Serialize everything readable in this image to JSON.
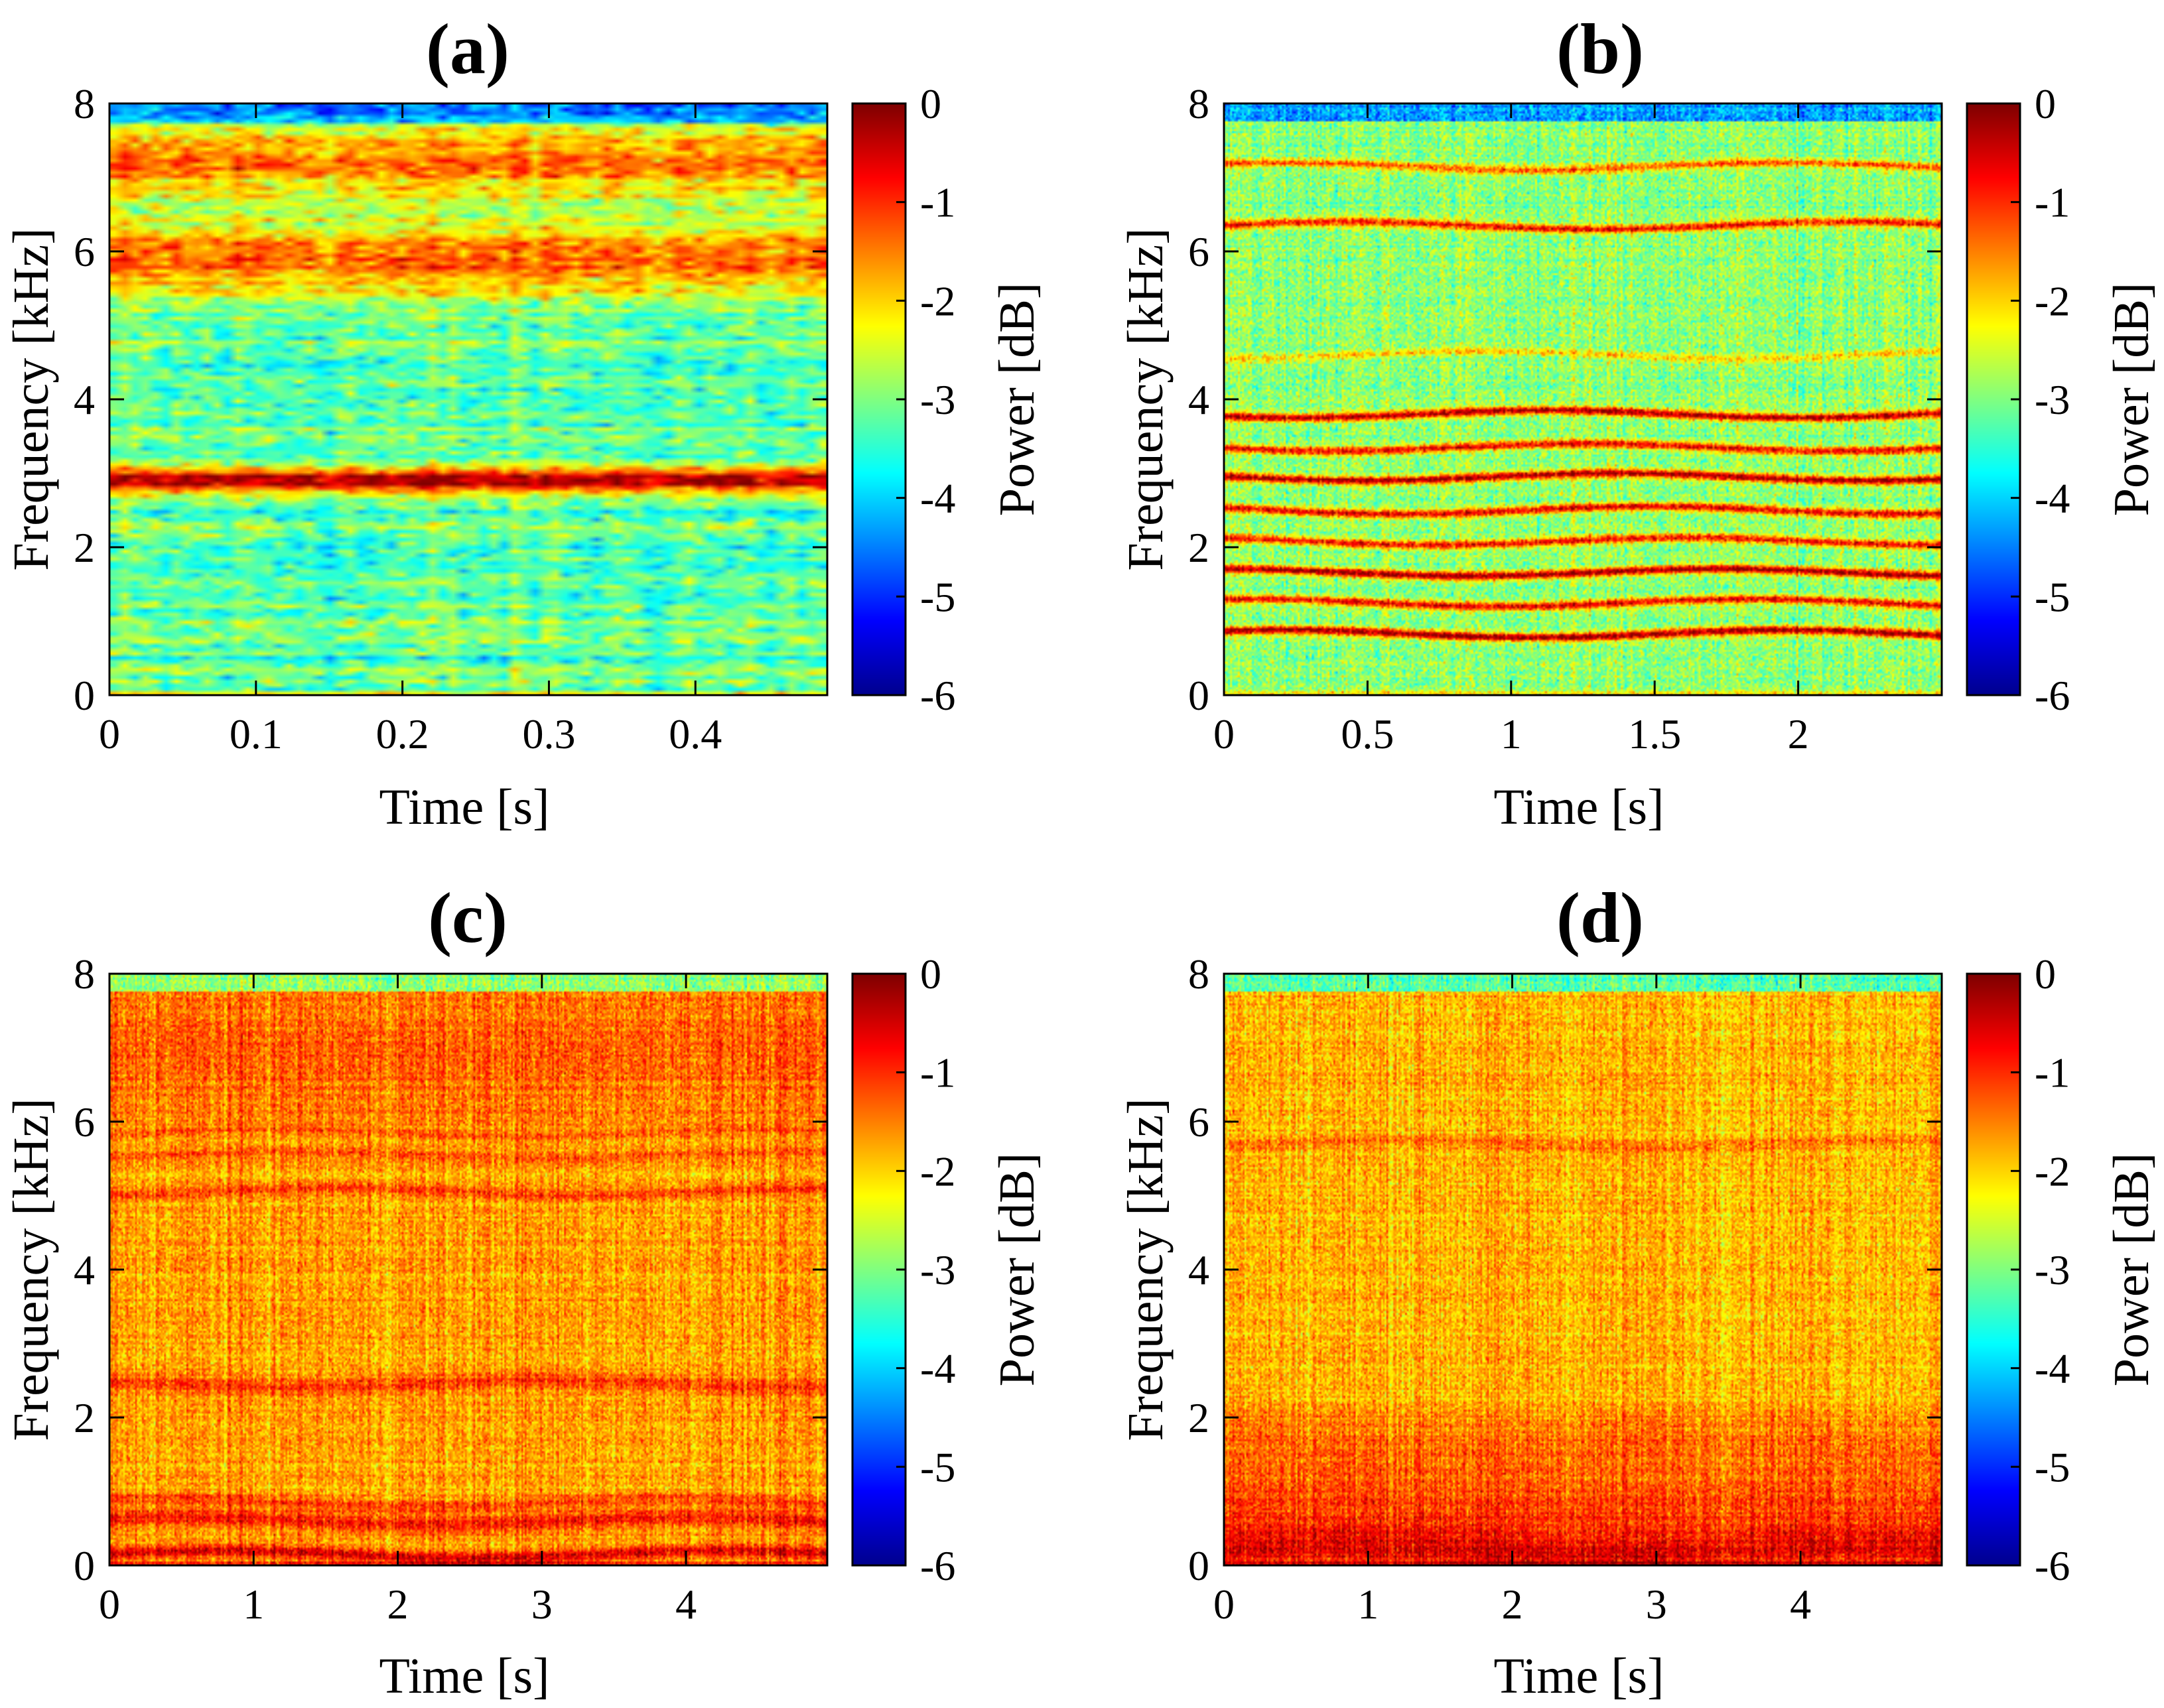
{
  "figure": {
    "colormap": "jet",
    "colormap_stops": [
      "#00008f",
      "#0000ff",
      "#0080ff",
      "#00ffff",
      "#80ff80",
      "#ffff00",
      "#ff8000",
      "#ff0000",
      "#800000"
    ]
  },
  "chart_data": [
    {
      "type": "heatmap",
      "title": "(a)",
      "xlabel": "Time [s]",
      "ylabel": "Frequency [kHz]",
      "colorbar_label": "Power [dB]",
      "xlim": [
        0,
        0.49
      ],
      "ylim": [
        0,
        8
      ],
      "xticks": [
        0,
        0.1,
        0.2,
        0.3,
        0.4
      ],
      "xtick_labels": [
        "0",
        "0.1",
        "0.2",
        "0.3",
        "0.4"
      ],
      "yticks": [
        0,
        2,
        4,
        6,
        8
      ],
      "ytick_labels": [
        "0",
        "2",
        "4",
        "6",
        "8"
      ],
      "clim": [
        -6,
        0
      ],
      "cticks": [
        0,
        -1,
        -2,
        -3,
        -4,
        -5,
        -6
      ],
      "ctick_labels": [
        "0",
        "-1",
        "-2",
        "-3",
        "-4",
        "-5",
        "-6"
      ],
      "style": "blocky",
      "base_db": -3.2,
      "noise_db": 0.5,
      "bands": [
        {
          "freq_khz": 2.9,
          "db": -0.2,
          "width_khz": 0.12
        },
        {
          "freq_khz": 5.9,
          "db": -1.3,
          "width_khz": 0.35
        },
        {
          "freq_khz": 7.2,
          "db": -1.5,
          "width_khz": 0.35
        }
      ]
    },
    {
      "type": "heatmap",
      "title": "(b)",
      "xlabel": "Time [s]",
      "ylabel": "Frequency [kHz]",
      "colorbar_label": "Power [dB]",
      "xlim": [
        0,
        2.5
      ],
      "ylim": [
        0,
        8
      ],
      "xticks": [
        0,
        0.5,
        1,
        1.5,
        2
      ],
      "xtick_labels": [
        "0",
        "0.5",
        "1",
        "1.5",
        "2"
      ],
      "yticks": [
        0,
        2,
        4,
        6,
        8
      ],
      "ytick_labels": [
        "0",
        "2",
        "4",
        "6",
        "8"
      ],
      "clim": [
        -6,
        0
      ],
      "cticks": [
        0,
        -1,
        -2,
        -3,
        -4,
        -5,
        -6
      ],
      "ctick_labels": [
        "0",
        "-1",
        "-2",
        "-3",
        "-4",
        "-5",
        "-6"
      ],
      "style": "harmonic",
      "base_db": -2.9,
      "noise_db": 0.45,
      "bands": [
        {
          "freq_khz": 0.83,
          "db": -0.1,
          "width_khz": 0.04
        },
        {
          "freq_khz": 1.25,
          "db": -0.6,
          "width_khz": 0.04
        },
        {
          "freq_khz": 1.66,
          "db": -0.2,
          "width_khz": 0.04
        },
        {
          "freq_khz": 2.08,
          "db": -0.7,
          "width_khz": 0.04
        },
        {
          "freq_khz": 2.5,
          "db": -0.5,
          "width_khz": 0.04
        },
        {
          "freq_khz": 2.95,
          "db": -0.2,
          "width_khz": 0.04
        },
        {
          "freq_khz": 3.35,
          "db": -0.6,
          "width_khz": 0.04
        },
        {
          "freq_khz": 3.8,
          "db": -0.2,
          "width_khz": 0.04
        },
        {
          "freq_khz": 4.6,
          "db": -1.9,
          "width_khz": 0.04
        },
        {
          "freq_khz": 6.35,
          "db": -0.7,
          "width_khz": 0.04
        },
        {
          "freq_khz": 7.15,
          "db": -1.2,
          "width_khz": 0.04
        }
      ]
    },
    {
      "type": "heatmap",
      "title": "(c)",
      "xlabel": "Time [s]",
      "ylabel": "Frequency [kHz]",
      "colorbar_label": "Power [dB]",
      "xlim": [
        0,
        4.98
      ],
      "ylim": [
        0,
        8
      ],
      "xticks": [
        0,
        1,
        2,
        3,
        4
      ],
      "xtick_labels": [
        "0",
        "1",
        "2",
        "3",
        "4"
      ],
      "yticks": [
        0,
        2,
        4,
        6,
        8
      ],
      "ytick_labels": [
        "0",
        "2",
        "4",
        "6",
        "8"
      ],
      "clim": [
        -6,
        0
      ],
      "cticks": [
        0,
        -1,
        -2,
        -3,
        -4,
        -5,
        -6
      ],
      "ctick_labels": [
        "0",
        "-1",
        "-2",
        "-3",
        "-4",
        "-5",
        "-6"
      ],
      "style": "noise",
      "base_db": -1.7,
      "noise_db": 0.4,
      "bands": [
        {
          "freq_khz": 0.15,
          "db": -0.5,
          "width_khz": 0.06
        },
        {
          "freq_khz": 0.6,
          "db": -0.8,
          "width_khz": 0.08
        },
        {
          "freq_khz": 0.85,
          "db": -1.0,
          "width_khz": 0.06
        },
        {
          "freq_khz": 2.45,
          "db": -1.1,
          "width_khz": 0.08
        },
        {
          "freq_khz": 5.05,
          "db": -1.1,
          "width_khz": 0.05
        },
        {
          "freq_khz": 5.55,
          "db": -1.3,
          "width_khz": 0.04
        },
        {
          "freq_khz": 5.85,
          "db": -1.3,
          "width_khz": 0.04
        },
        {
          "freq_khz": 7.0,
          "db": -1.3,
          "width_khz": 0.7
        }
      ]
    },
    {
      "type": "heatmap",
      "title": "(d)",
      "xlabel": "Time [s]",
      "ylabel": "Frequency [kHz]",
      "colorbar_label": "Power [dB]",
      "xlim": [
        0,
        4.98
      ],
      "ylim": [
        0,
        8
      ],
      "xticks": [
        0,
        1,
        2,
        3,
        4
      ],
      "xtick_labels": [
        "0",
        "1",
        "2",
        "3",
        "4"
      ],
      "yticks": [
        0,
        2,
        4,
        6,
        8
      ],
      "ytick_labels": [
        "0",
        "2",
        "4",
        "6",
        "8"
      ],
      "clim": [
        -6,
        0
      ],
      "cticks": [
        0,
        -1,
        -2,
        -3,
        -4,
        -5,
        -6
      ],
      "ctick_labels": [
        "0",
        "-1",
        "-2",
        "-3",
        "-4",
        "-5",
        "-6"
      ],
      "style": "noise",
      "base_db": -1.8,
      "noise_db": 0.4,
      "bands": [
        {
          "freq_khz": 0.2,
          "db": -0.6,
          "width_khz": 0.2
        },
        {
          "freq_khz": 0.8,
          "db": -1.1,
          "width_khz": 0.3
        },
        {
          "freq_khz": 1.6,
          "db": -1.3,
          "width_khz": 0.3
        },
        {
          "freq_khz": 5.7,
          "db": -1.4,
          "width_khz": 0.06
        }
      ]
    }
  ]
}
